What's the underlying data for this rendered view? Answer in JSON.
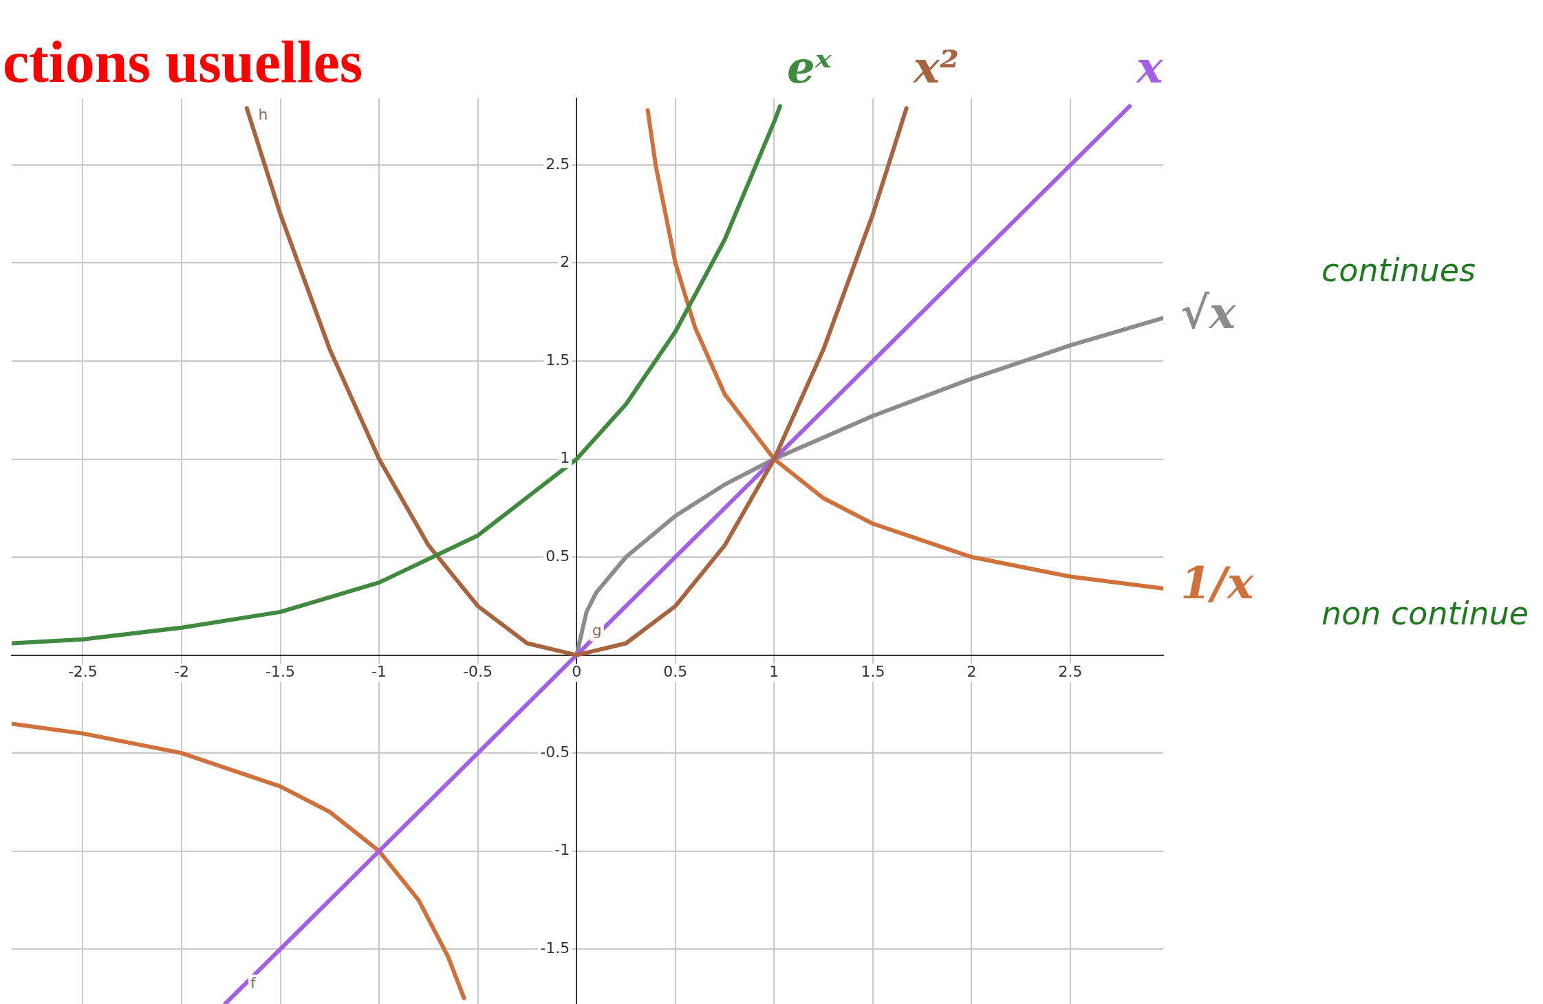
{
  "chart_data": {
    "type": "line",
    "title": "ctions usuelles",
    "xlim": [
      -2.86,
      2.97
    ],
    "ylim": [
      -1.78,
      2.84
    ],
    "xticks": [
      -2.5,
      -2,
      -1.5,
      -1,
      -0.5,
      0,
      0.5,
      1,
      1.5,
      2,
      2.5
    ],
    "yticks": [
      -1.5,
      -1,
      -0.5,
      0.5,
      1,
      1.5,
      2,
      2.5
    ],
    "grid": true,
    "legend": false,
    "marker": "none",
    "line_style": "solid",
    "series": [
      {
        "name": "eˣ",
        "color": "#3f8a3f",
        "x": [
          -2.86,
          -2.5,
          -2,
          -1.5,
          -1,
          -0.5,
          0,
          0.25,
          0.5,
          0.75,
          1,
          1.03
        ],
        "values": [
          0.06,
          0.08,
          0.14,
          0.22,
          0.37,
          0.61,
          1,
          1.28,
          1.65,
          2.12,
          2.72,
          2.8
        ]
      },
      {
        "name": "x²",
        "color": "#a8643e",
        "x": [
          -1.67,
          -1.5,
          -1.25,
          -1,
          -0.75,
          -0.5,
          -0.25,
          0,
          0.25,
          0.5,
          0.75,
          1,
          1.25,
          1.5,
          1.67
        ],
        "values": [
          2.79,
          2.25,
          1.56,
          1,
          0.56,
          0.25,
          0.06,
          0,
          0.06,
          0.25,
          0.56,
          1,
          1.56,
          2.25,
          2.79
        ]
      },
      {
        "name": "x",
        "color": "#a35fe8",
        "x": [
          -1.78,
          2.8
        ],
        "values": [
          -1.78,
          2.8
        ]
      },
      {
        "name": "√x",
        "color": "#8c8c8c",
        "x": [
          0,
          0.05,
          0.1,
          0.25,
          0.5,
          0.75,
          1,
          1.5,
          2,
          2.5,
          2.97
        ],
        "values": [
          0,
          0.22,
          0.32,
          0.5,
          0.71,
          0.87,
          1,
          1.22,
          1.41,
          1.58,
          1.72
        ]
      },
      {
        "name": "1/x",
        "color": "#d0703a",
        "x": [
          -2.86,
          -2.5,
          -2,
          -1.5,
          -1.25,
          -1,
          -0.8,
          -0.65,
          -0.57,
          0,
          0.36,
          0.4,
          0.5,
          0.6,
          0.75,
          1,
          1.25,
          1.5,
          2,
          2.5,
          2.97
        ],
        "values": [
          -0.35,
          -0.4,
          -0.5,
          -0.67,
          -0.8,
          -1,
          -1.25,
          -1.54,
          -1.75,
          null,
          2.78,
          2.5,
          2,
          1.67,
          1.33,
          1,
          0.8,
          0.67,
          0.5,
          0.4,
          0.34
        ]
      }
    ],
    "annotations": [
      "continues",
      "non continue",
      {
        "text": "h",
        "x": -1.66,
        "y": 2.75
      },
      {
        "text": "g",
        "x": 0.03,
        "y": 0.12
      },
      {
        "text": "f",
        "x": -1.7,
        "y": -1.68
      }
    ]
  }
}
